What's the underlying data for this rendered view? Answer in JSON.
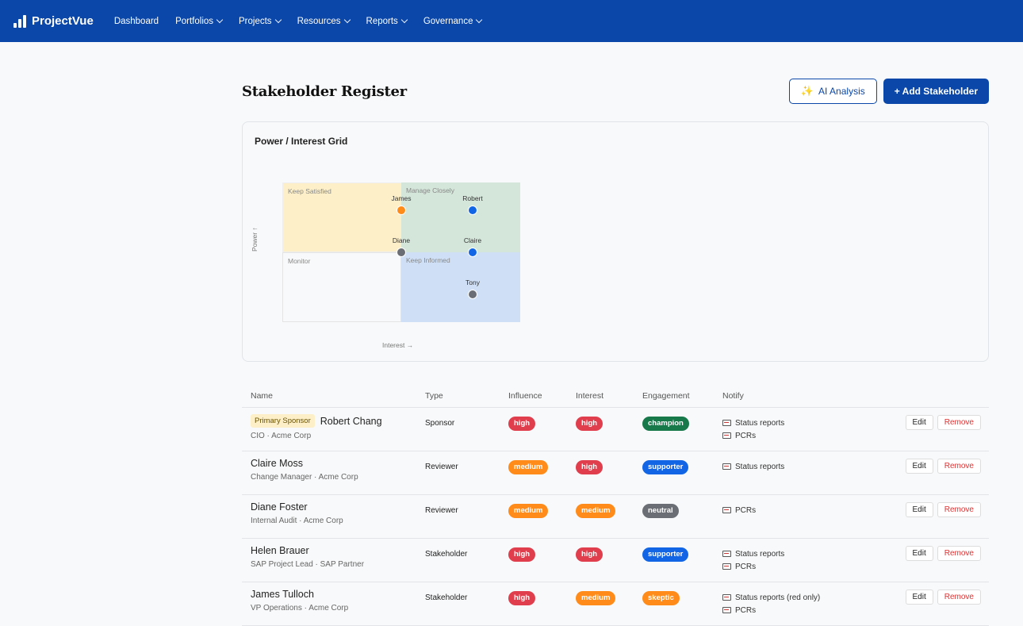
{
  "app": {
    "name": "ProjectVue"
  },
  "nav": [
    {
      "label": "Dashboard",
      "has_menu": false
    },
    {
      "label": "Portfolios",
      "has_menu": true
    },
    {
      "label": "Projects",
      "has_menu": true
    },
    {
      "label": "Resources",
      "has_menu": true
    },
    {
      "label": "Reports",
      "has_menu": true
    },
    {
      "label": "Governance",
      "has_menu": true
    }
  ],
  "page": {
    "title": "Stakeholder Register",
    "ai_button": "AI Analysis",
    "add_button": "+ Add Stakeholder"
  },
  "grid": {
    "title": "Power / Interest Grid",
    "quadrants": {
      "top_left": "Keep Satisfied",
      "top_right": "Manage Closely",
      "bottom_left": "Monitor",
      "bottom_right": "Keep Informed"
    },
    "y_axis": "Power ↑",
    "x_axis": "Interest →",
    "points": [
      {
        "label": "James",
        "color": "#ff8c1a",
        "interest": 0.5,
        "power": 0.8
      },
      {
        "label": "Robert",
        "color": "#1266e6",
        "interest": 0.8,
        "power": 0.8
      },
      {
        "label": "Diane",
        "color": "#6b6f75",
        "interest": 0.5,
        "power": 0.5
      },
      {
        "label": "Claire",
        "color": "#1266e6",
        "interest": 0.8,
        "power": 0.5
      },
      {
        "label": "Tony",
        "color": "#6b6f75",
        "interest": 0.8,
        "power": 0.2
      }
    ]
  },
  "table": {
    "headers": {
      "name": "Name",
      "type": "Type",
      "influence": "Influence",
      "interest": "Interest",
      "engagement": "Engagement",
      "notify": "Notify"
    },
    "edit_label": "Edit",
    "remove_label": "Remove",
    "rows": [
      {
        "tag": "Primary Sponsor",
        "name": "Robert Chang",
        "sub": "CIO · Acme Corp",
        "type": "Sponsor",
        "influence": "high",
        "interest": "high",
        "engagement": "champion",
        "notify": [
          "Status reports",
          "PCRs"
        ]
      },
      {
        "tag": "",
        "name": "Claire Moss",
        "sub": "Change Manager · Acme Corp",
        "type": "Reviewer",
        "influence": "medium",
        "interest": "high",
        "engagement": "supporter",
        "notify": [
          "Status reports"
        ]
      },
      {
        "tag": "",
        "name": "Diane Foster",
        "sub": "Internal Audit · Acme Corp",
        "type": "Reviewer",
        "influence": "medium",
        "interest": "medium",
        "engagement": "neutral",
        "notify": [
          "PCRs"
        ]
      },
      {
        "tag": "",
        "name": "Helen Brauer",
        "sub": "SAP Project Lead · SAP Partner",
        "type": "Stakeholder",
        "influence": "high",
        "interest": "high",
        "engagement": "supporter",
        "notify": [
          "Status reports",
          "PCRs"
        ]
      },
      {
        "tag": "",
        "name": "James Tulloch",
        "sub": "VP Operations · Acme Corp",
        "type": "Stakeholder",
        "influence": "high",
        "interest": "medium",
        "engagement": "skeptic",
        "notify": [
          "Status reports (red only)",
          "PCRs"
        ]
      }
    ]
  }
}
